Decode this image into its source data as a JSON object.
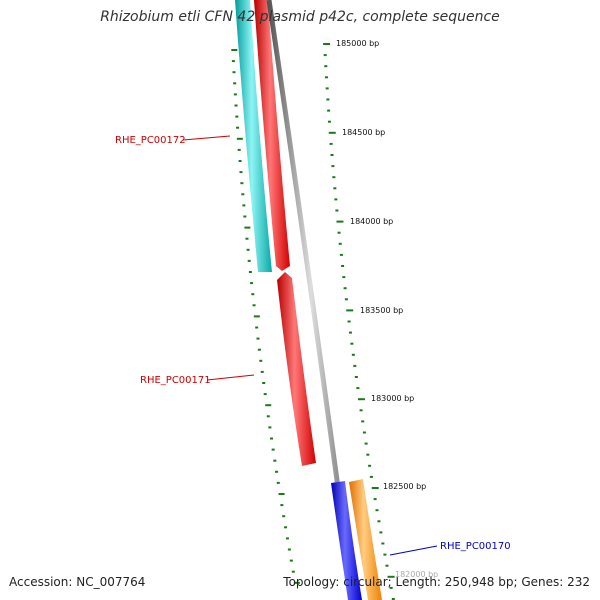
{
  "title": "Rhizobium etli CFN 42 plasmid p42c, complete sequence",
  "footer": {
    "accession": "Accession: NC_007764",
    "summary": "Topology: circular; Length: 250,948 bp; Genes: 232"
  },
  "scale": {
    "labels": [
      "185000 bp",
      "184500 bp",
      "184000 bp",
      "183500 bp",
      "183000 bp",
      "182500 bp",
      "182000 bp"
    ]
  },
  "genes": [
    {
      "name": "RHE_PC00172",
      "color": "#cc0000"
    },
    {
      "name": "RHE_PC00171",
      "color": "#cc0000"
    },
    {
      "name": "RHE_PC00170",
      "color": "#0000cc"
    }
  ],
  "colors": {
    "cyan_track": "#18c8c8",
    "red_track": "#ee1111",
    "blue_track": "#0a0aee",
    "orange_track": "#ff8800",
    "backbone": "#888888",
    "tick": "#1a7a1a"
  }
}
